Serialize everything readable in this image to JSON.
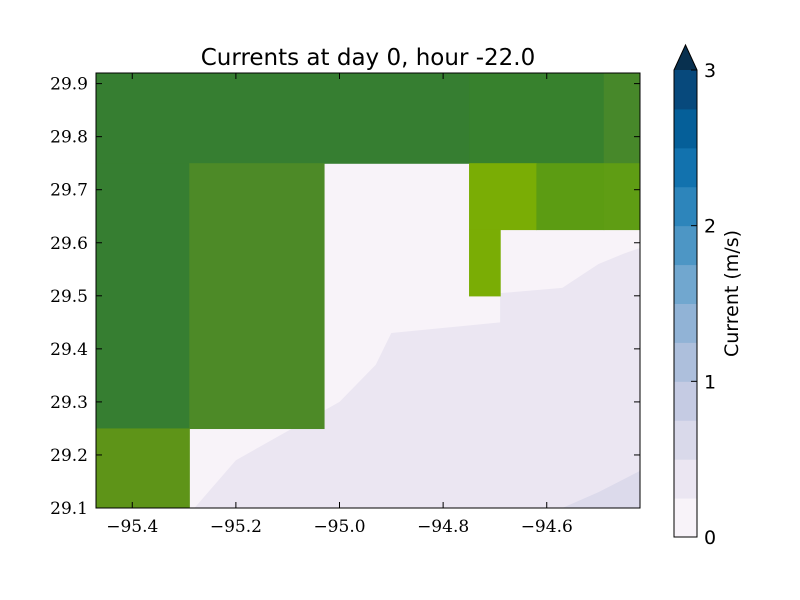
{
  "chart_data": {
    "type": "heatmap",
    "title": "Currents at day 0, hour -22.0",
    "xlabel": "",
    "ylabel": "",
    "xlim": [
      -95.47,
      -94.42
    ],
    "ylim": [
      29.1,
      29.92
    ],
    "x_ticks": [
      -95.4,
      -95.2,
      -95.0,
      -94.8,
      -94.6
    ],
    "x_tick_labels": [
      "−95.4",
      "−95.2",
      "−95.0",
      "−94.8",
      "−94.6"
    ],
    "y_ticks": [
      29.1,
      29.2,
      29.3,
      29.4,
      29.5,
      29.6,
      29.7,
      29.8,
      29.9
    ],
    "y_tick_labels": [
      "29.1",
      "29.2",
      "29.3",
      "29.4",
      "29.5",
      "29.6",
      "29.7",
      "29.8",
      "29.9"
    ],
    "land_cells": [
      {
        "x0": -95.47,
        "x1": -94.75,
        "y0": 29.75,
        "y1": 29.92,
        "color": "#367e31"
      },
      {
        "x0": -94.75,
        "x1": -94.49,
        "y0": 29.75,
        "y1": 29.92,
        "color": "#37812d"
      },
      {
        "x0": -94.49,
        "x1": -94.42,
        "y0": 29.75,
        "y1": 29.92,
        "color": "#47882a"
      },
      {
        "x0": -95.47,
        "x1": -95.29,
        "y0": 29.25,
        "y1": 29.75,
        "color": "#367e31"
      },
      {
        "x0": -95.29,
        "x1": -95.03,
        "y0": 29.25,
        "y1": 29.75,
        "color": "#4d8a27"
      },
      {
        "x0": -95.47,
        "x1": -95.29,
        "y0": 29.1,
        "y1": 29.25,
        "color": "#5e9418"
      },
      {
        "x0": -94.75,
        "x1": -94.62,
        "y0": 29.625,
        "y1": 29.75,
        "color": "#7aad05"
      },
      {
        "x0": -94.75,
        "x1": -94.69,
        "y0": 29.5,
        "y1": 29.625,
        "color": "#7aad05"
      },
      {
        "x0": -94.62,
        "x1": -94.49,
        "y0": 29.625,
        "y1": 29.75,
        "color": "#5c9c13"
      },
      {
        "x0": -94.49,
        "x1": -94.42,
        "y0": 29.625,
        "y1": 29.75,
        "color": "#5f9d14"
      }
    ],
    "water_background_color": "#f8f3f9",
    "water_band_1": {
      "color": "#ebe6f2",
      "boundary": [
        [
          -95.28,
          29.1
        ],
        [
          -95.2,
          29.19
        ],
        [
          -95.0,
          29.3
        ],
        [
          -94.93,
          29.37
        ],
        [
          -94.9,
          29.43
        ],
        [
          -94.69,
          29.45
        ],
        [
          -94.69,
          29.505
        ],
        [
          -94.57,
          29.515
        ],
        [
          -94.5,
          29.56
        ],
        [
          -94.45,
          29.58
        ],
        [
          -94.42,
          29.59
        ]
      ]
    },
    "water_band_2": {
      "color": "#dcdaeb",
      "boundary": [
        [
          -94.57,
          29.1
        ],
        [
          -94.5,
          29.13
        ],
        [
          -94.45,
          29.155
        ],
        [
          -94.42,
          29.17
        ]
      ]
    },
    "colorbar": {
      "label": "Current (m/s)",
      "range": [
        0,
        3
      ],
      "extend": "max",
      "extend_color": "#08304f",
      "ticks": [
        0,
        1,
        2,
        3
      ],
      "tick_labels": [
        "0",
        "1",
        "2",
        "3"
      ],
      "colors": [
        "#f8f3f9",
        "#ebe6f2",
        "#d9d9ea",
        "#c5cbe3",
        "#adbfdc",
        "#91b3d6",
        "#71a7cf",
        "#4d96c5",
        "#2d85bb",
        "#1272ae",
        "#055f99",
        "#07497c"
      ]
    }
  }
}
